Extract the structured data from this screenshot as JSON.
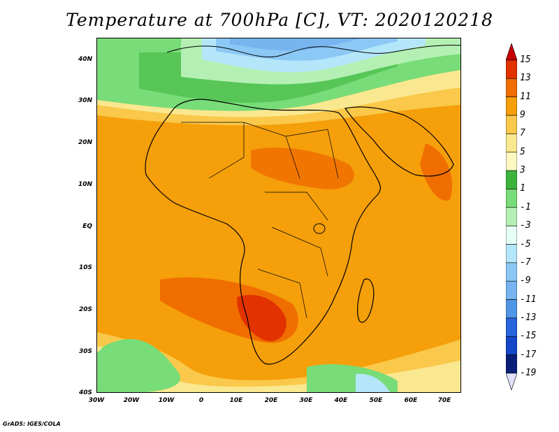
{
  "title": "Temperature at 700hPa [C], VT: 2020120218",
  "credit": "GrADS: IGES/COLA",
  "lat_labels": [
    "40N",
    "30N",
    "20N",
    "10N",
    "EQ",
    "10S",
    "20S",
    "30S",
    "40S"
  ],
  "lon_labels": [
    "30W",
    "20W",
    "10W",
    "0",
    "10E",
    "20E",
    "30E",
    "40E",
    "50E",
    "60E",
    "70E"
  ],
  "colorbar_labels": [
    "15",
    "13",
    "11",
    "9",
    "7",
    "5",
    "3",
    "1",
    "-1",
    "-3",
    "-5",
    "-7",
    "-9",
    "-11",
    "-13",
    "-15",
    "-17",
    "-19"
  ],
  "colorbar_colors": [
    "#c80000",
    "#e23200",
    "#f06e00",
    "#f59f0a",
    "#fac84a",
    "#fae890",
    "#fdf8c0",
    "#3cb43c",
    "#78dc78",
    "#b4f0b4",
    "#e6fff5",
    "#b4e6fa",
    "#8cc8f5",
    "#78b4f0",
    "#5096e6",
    "#2864dc",
    "#1446c8",
    "#0a1e78",
    "#e1e1ff"
  ],
  "map": {
    "colors": {
      "ocean_warm": "#f59f0a",
      "hot": "#f06e00",
      "very_hot": "#e23200",
      "mild": "#fac84a",
      "cool_yellow": "#fae890",
      "green": "#78dc78",
      "dark_green": "#3cb43c",
      "pale_green": "#b4f0b4",
      "pale_blue": "#b4e6fa",
      "light_blue": "#8cc8f5",
      "blue": "#78b4f0",
      "coast": "#000000"
    }
  }
}
